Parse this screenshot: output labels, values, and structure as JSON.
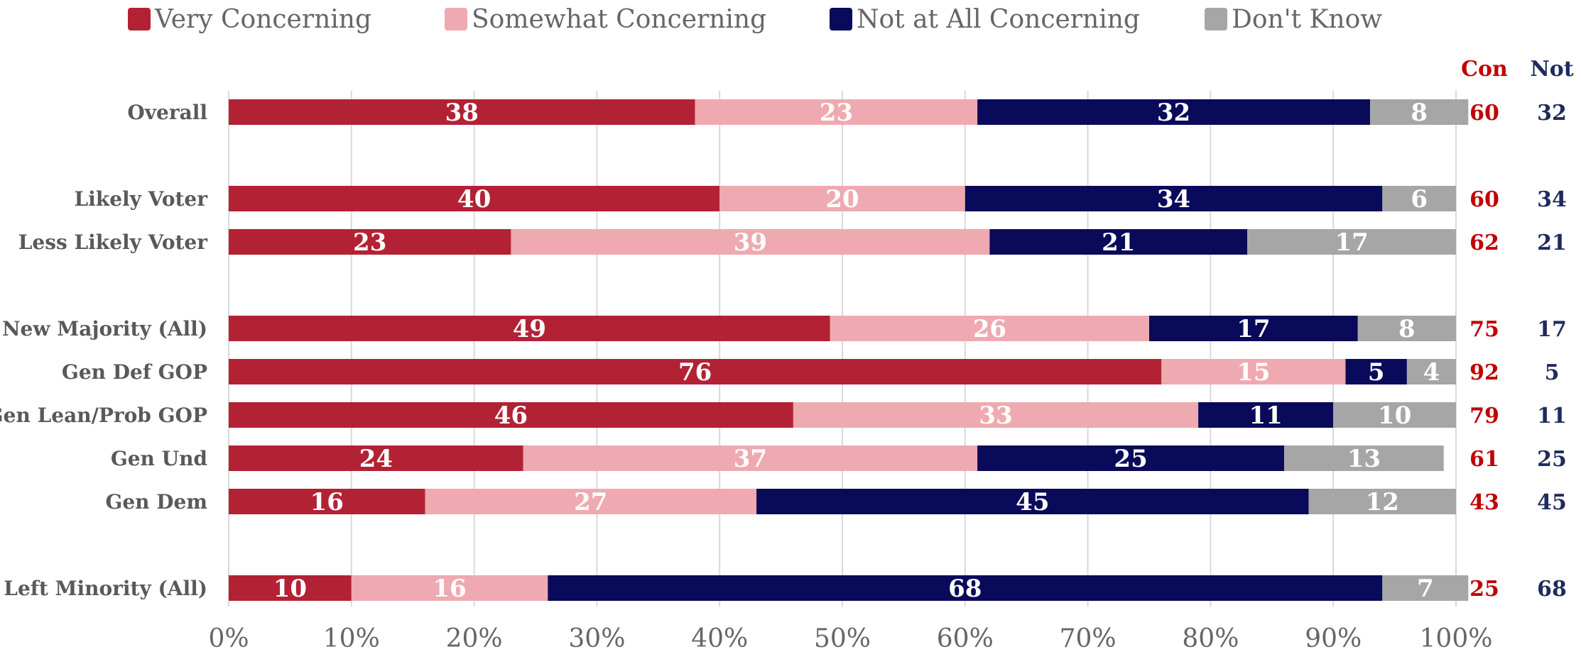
{
  "legend": {
    "items": [
      {
        "label": "Very Concerning",
        "color": "#B22234"
      },
      {
        "label": "Somewhat Concerning",
        "color": "#EEAAB0"
      },
      {
        "label": "Not at All Concerning",
        "color": "#0A0A5A"
      },
      {
        "label": "Don't Know",
        "color": "#A6A6A6"
      }
    ]
  },
  "chart_data": {
    "type": "bar",
    "orientation": "horizontal",
    "stacked": true,
    "categories": [
      "Overall",
      "Likely Voter",
      "Less Likely Voter",
      "New Majority (All)",
      "Gen Def GOP",
      "Gen Lean/Prob GOP",
      "Gen Und",
      "Gen Dem",
      "Left Minority (All)"
    ],
    "series": [
      {
        "name": "Very Concerning",
        "color": "#B22234",
        "label_color": "#ffffff",
        "values": [
          38,
          40,
          23,
          49,
          76,
          46,
          24,
          16,
          10
        ]
      },
      {
        "name": "Somewhat Concerning",
        "color": "#EEAAB0",
        "label_color": "#ffffff",
        "values": [
          23,
          20,
          39,
          26,
          15,
          33,
          37,
          27,
          16
        ]
      },
      {
        "name": "Not at All Concerning",
        "color": "#0A0A5A",
        "label_color": "#ffffff",
        "values": [
          32,
          34,
          21,
          17,
          5,
          11,
          25,
          45,
          68
        ]
      },
      {
        "name": "Don't Know",
        "color": "#A6A6A6",
        "label_color": "#ffffff",
        "values": [
          8,
          6,
          17,
          8,
          4,
          10,
          13,
          12,
          7
        ]
      }
    ],
    "xlim": [
      0,
      100
    ],
    "x_ticks": [
      "0%",
      "10%",
      "20%",
      "30%",
      "40%",
      "50%",
      "60%",
      "70%",
      "80%",
      "90%",
      "100%"
    ],
    "grid": true,
    "legend_position": "top",
    "summary_columns": [
      {
        "header": "Con",
        "color": "#C00000",
        "values": [
          60,
          60,
          62,
          75,
          92,
          79,
          61,
          43,
          25
        ]
      },
      {
        "header": "Not",
        "color": "#1F2A5E",
        "values": [
          32,
          34,
          21,
          17,
          5,
          11,
          25,
          45,
          68
        ]
      }
    ]
  }
}
